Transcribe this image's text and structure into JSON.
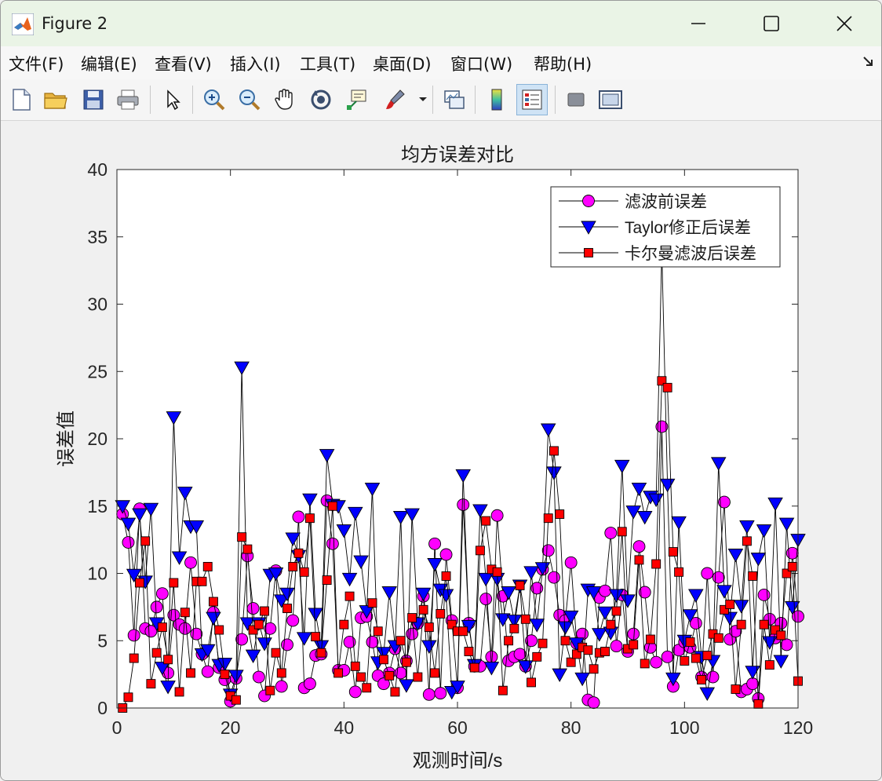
{
  "window": {
    "title": "Figure 2"
  },
  "menu": [
    "文件(F)",
    "编辑(E)",
    "查看(V)",
    "插入(I)",
    "工具(T)",
    "桌面(D)",
    "窗口(W)",
    "帮助(H)"
  ],
  "toolbar": [
    "new-figure",
    "open-file",
    "save",
    "print",
    "edit-plot",
    "zoom-in",
    "zoom-out",
    "pan",
    "rotate-3d",
    "data-cursor",
    "brush",
    "link-plot",
    "colorbar",
    "legend",
    "hide-plot-tools",
    "show-plot-tools"
  ],
  "chart_data": {
    "type": "line",
    "title": "均方误差对比",
    "xlabel": "观测时间/s",
    "ylabel": "误差值",
    "xlim": [
      0,
      120
    ],
    "ylim": [
      0,
      40
    ],
    "xticks": [
      0,
      20,
      40,
      60,
      80,
      100,
      120
    ],
    "yticks": [
      0,
      5,
      10,
      15,
      20,
      25,
      30,
      35,
      40
    ],
    "legend_location": "top-right",
    "series": [
      {
        "name": "滤波前误差",
        "marker": "circle",
        "color": "#ff00ff",
        "values": [
          14.4,
          12.3,
          5.4,
          14.8,
          5.9,
          5.7,
          7.5,
          8.5,
          2.6,
          6.9,
          6.2,
          5.9,
          10.8,
          5.5,
          4.0,
          2.7,
          7.1,
          3.0,
          2.1,
          0.5,
          2.2,
          5.1,
          11.3,
          7.4,
          2.3,
          0.9,
          5.9,
          10.2,
          1.6,
          4.7,
          6.5,
          14.2,
          1.5,
          1.8,
          3.9,
          4.0,
          15.4,
          12.2,
          2.8,
          2.8,
          4.9,
          1.2,
          6.7,
          6.8,
          4.9,
          2.4,
          1.8,
          2.6,
          4.4,
          2.6,
          3.5,
          5.5,
          6.3,
          8.3,
          1.0,
          12.2,
          1.1,
          11.4,
          6.5,
          1.5,
          15.1,
          6.3,
          3.1,
          3.1,
          8.1,
          3.8,
          14.3,
          8.3,
          3.5,
          3.8,
          4.0,
          3.1,
          5.0,
          8.9,
          10.3,
          11.7,
          9.7,
          6.9,
          6.5,
          10.8,
          4.8,
          5.5,
          0.6,
          0.4,
          8.2,
          8.7,
          13.0,
          4.6,
          8.4,
          4.2,
          5.5,
          12.0,
          8.6,
          4.5,
          3.4,
          20.9,
          3.8,
          1.6,
          4.3,
          4.9,
          4.5,
          6.3,
          2.3,
          10.0,
          2.3,
          9.7,
          15.3,
          5.1,
          5.7,
          1.2,
          1.4,
          1.8,
          0.7,
          8.4,
          6.6,
          5.2,
          6.3,
          4.7,
          11.5,
          6.8
        ]
      },
      {
        "name": "Taylor修正后误差",
        "marker": "triangle-down",
        "color": "#0000ff",
        "values": [
          15.0,
          13.7,
          9.9,
          14.4,
          9.4,
          14.8,
          6.3,
          3.0,
          1.6,
          21.6,
          11.2,
          16.0,
          13.5,
          13.5,
          4.0,
          4.3,
          6.7,
          3.2,
          3.3,
          1.0,
          2.4,
          25.3,
          6.3,
          3.9,
          6.3,
          4.8,
          9.9,
          10.0,
          8.0,
          8.5,
          12.6,
          11.3,
          5.2,
          15.5,
          7.0,
          4.6,
          18.8,
          15.1,
          15.0,
          13.2,
          9.6,
          14.5,
          10.9,
          7.2,
          16.3,
          3.4,
          4.1,
          8.6,
          4.6,
          14.2,
          1.7,
          14.4,
          6.3,
          8.5,
          4.6,
          10.7,
          8.8,
          8.4,
          1.2,
          1.6,
          17.3,
          6.1,
          3.2,
          14.7,
          9.6,
          3.0,
          9.6,
          6.6,
          8.6,
          6.5,
          9.1,
          3.1,
          10.1,
          6.2,
          10.4,
          20.7,
          17.5,
          2.5,
          6.0,
          6.8,
          4.8,
          2.2,
          8.8,
          8.6,
          5.5,
          7.1,
          5.6,
          8.4,
          18.0,
          8.0,
          14.6,
          16.3,
          14.2,
          15.7,
          15.5,
          34.0,
          16.6,
          2.2,
          13.8,
          5.0,
          6.9,
          8.4,
          3.8,
          1.1,
          3.5,
          18.2,
          8.7,
          6.7,
          11.4,
          7.6,
          13.5,
          2.7,
          11.1,
          13.2,
          4.9,
          15.2,
          3.5,
          13.7,
          7.5,
          12.5
        ]
      },
      {
        "name": "卡尔曼滤波后误差",
        "marker": "square",
        "color": "#ff0000",
        "values": [
          0.0,
          0.8,
          3.7,
          9.3,
          12.4,
          1.8,
          4.1,
          6.0,
          3.6,
          9.3,
          1.2,
          7.1,
          2.6,
          9.4,
          9.4,
          10.5,
          7.9,
          5.8,
          2.5,
          0.9,
          0.6,
          12.7,
          11.8,
          5.8,
          6.2,
          7.2,
          1.3,
          4.1,
          2.6,
          7.4,
          10.5,
          11.5,
          10.1,
          14.1,
          5.3,
          4.1,
          9.5,
          15.0,
          2.6,
          6.2,
          8.3,
          3.1,
          2.3,
          1.5,
          7.8,
          5.7,
          3.6,
          2.4,
          1.2,
          5.0,
          3.4,
          6.7,
          2.3,
          7.3,
          6.0,
          2.6,
          7.0,
          9.8,
          6.2,
          5.7,
          5.7,
          4.2,
          3.0,
          11.7,
          13.9,
          10.3,
          10.1,
          1.3,
          5.0,
          5.9,
          9.1,
          6.6,
          1.9,
          3.8,
          4.8,
          14.1,
          19.1,
          14.4,
          5.0,
          3.4,
          4.0,
          4.5,
          4.3,
          2.9,
          4.1,
          4.2,
          6.2,
          7.2,
          13.1,
          4.4,
          4.7,
          11.0,
          3.3,
          5.1,
          10.7,
          24.3,
          23.8,
          11.6,
          10.1,
          3.5,
          4.9,
          3.7,
          2.1,
          3.9,
          5.5,
          5.2,
          7.3,
          7.7,
          1.4,
          6.2,
          12.4,
          9.8,
          0.3,
          6.2,
          3.2,
          5.8,
          5.4,
          10.0,
          10.5,
          2.0
        ]
      }
    ]
  }
}
